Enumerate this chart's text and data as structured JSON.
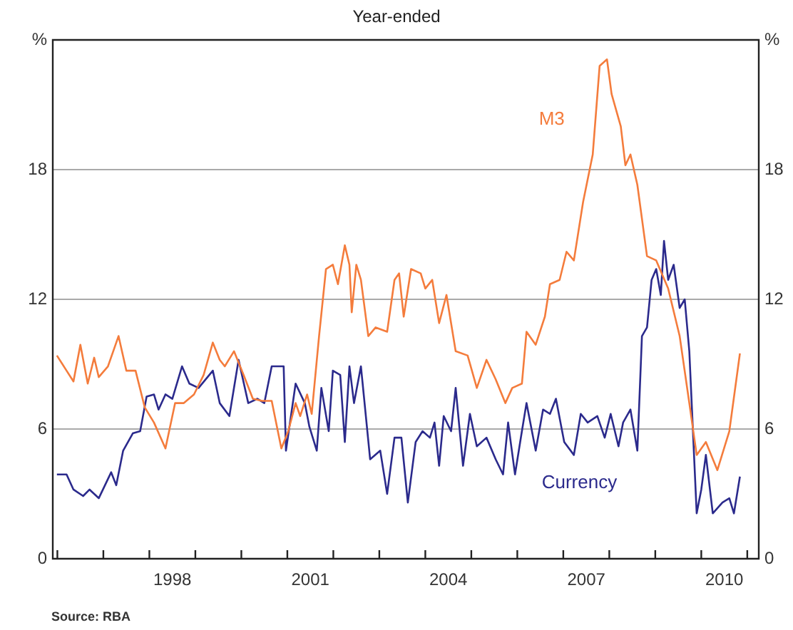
{
  "chart_data": {
    "type": "line",
    "subtitle": "Year-ended",
    "annotations": [
      "Source: RBA"
    ],
    "xlim": [
      1995.9,
      2011.25
    ],
    "xticks": [
      {
        "value": 1996,
        "label": null
      },
      {
        "value": 1997,
        "label": null
      },
      {
        "value": 1998,
        "label": null
      },
      {
        "value": 1998.5,
        "label": "1998"
      },
      {
        "value": 1999,
        "label": null
      },
      {
        "value": 2000,
        "label": null
      },
      {
        "value": 2001,
        "label": null
      },
      {
        "value": 2001.5,
        "label": "2001"
      },
      {
        "value": 2002,
        "label": null
      },
      {
        "value": 2003,
        "label": null
      },
      {
        "value": 2004,
        "label": null
      },
      {
        "value": 2004.5,
        "label": "2004"
      },
      {
        "value": 2005,
        "label": null
      },
      {
        "value": 2006,
        "label": null
      },
      {
        "value": 2007,
        "label": null
      },
      {
        "value": 2007.5,
        "label": "2007"
      },
      {
        "value": 2008,
        "label": null
      },
      {
        "value": 2009,
        "label": null
      },
      {
        "value": 2010,
        "label": null
      },
      {
        "value": 2010.5,
        "label": "2010"
      },
      {
        "value": 2011,
        "label": null
      }
    ],
    "ylim": [
      0,
      24
    ],
    "yticks": [
      0,
      6,
      12,
      18,
      {
        "value": 24,
        "label": "%"
      }
    ],
    "y2lim": [
      0,
      24
    ],
    "y2ticks": [
      0,
      6,
      12,
      18,
      {
        "value": 24,
        "label": "%"
      }
    ],
    "grid": "y",
    "legend": false,
    "marker": "none",
    "line_style": "solid",
    "series": [
      {
        "name": "M3",
        "color": "#f47c3c",
        "x": [
          1995.99,
          1996.2,
          1996.35,
          1996.5,
          1996.66,
          1996.8,
          1996.9,
          1997.1,
          1997.33,
          1997.5,
          1997.7,
          1997.9,
          1998.1,
          1998.35,
          1998.56,
          1998.75,
          1998.97,
          1999.18,
          1999.38,
          1999.53,
          1999.64,
          1999.84,
          2000.05,
          2000.25,
          2000.45,
          2000.66,
          2000.87,
          2001.02,
          2001.18,
          2001.28,
          2001.43,
          2001.53,
          2001.69,
          2001.84,
          2001.99,
          2002.1,
          2002.25,
          2002.35,
          2002.4,
          2002.5,
          2002.6,
          2002.76,
          2002.92,
          2003.17,
          2003.33,
          2003.43,
          2003.53,
          2003.69,
          2003.9,
          2004.0,
          2004.15,
          2004.3,
          2004.46,
          2004.66,
          2004.92,
          2005.12,
          2005.33,
          2005.53,
          2005.74,
          2005.89,
          2006.1,
          2006.2,
          2006.4,
          2006.6,
          2006.71,
          2006.92,
          2007.07,
          2007.23,
          2007.43,
          2007.64,
          2007.79,
          2007.95,
          2008.05,
          2008.25,
          2008.35,
          2008.46,
          2008.61,
          2008.82,
          2009.02,
          2009.28,
          2009.53,
          2009.74,
          2009.9,
          2010.1,
          2010.35,
          2010.61,
          2010.84
        ],
        "values": [
          9.4,
          8.7,
          8.2,
          9.9,
          8.1,
          9.3,
          8.4,
          8.9,
          10.3,
          8.7,
          8.7,
          7.0,
          6.3,
          5.1,
          7.2,
          7.2,
          7.6,
          8.5,
          10.0,
          9.2,
          8.9,
          9.6,
          8.5,
          7.4,
          7.3,
          7.3,
          5.1,
          5.9,
          7.2,
          6.6,
          7.6,
          6.7,
          10.3,
          13.4,
          13.6,
          12.7,
          14.5,
          13.6,
          11.4,
          13.6,
          12.9,
          10.3,
          10.7,
          10.5,
          12.9,
          13.2,
          11.2,
          13.4,
          13.2,
          12.5,
          12.9,
          10.9,
          12.2,
          9.6,
          9.4,
          7.9,
          9.2,
          8.3,
          7.2,
          7.9,
          8.1,
          10.5,
          9.9,
          11.2,
          12.7,
          12.9,
          14.2,
          13.8,
          16.5,
          18.7,
          22.8,
          23.1,
          21.5,
          20.0,
          18.2,
          18.7,
          17.3,
          14.0,
          13.8,
          12.5,
          10.3,
          7.2,
          4.8,
          5.4,
          4.1,
          5.9,
          9.5
        ]
      },
      {
        "name": "Currency",
        "color": "#2b2a8c",
        "x": [
          1995.99,
          1996.2,
          1996.35,
          1996.56,
          1996.7,
          1996.9,
          1997.17,
          1997.28,
          1997.43,
          1997.64,
          1997.8,
          1997.94,
          1998.1,
          1998.2,
          1998.35,
          1998.5,
          1998.71,
          1998.87,
          1999.07,
          1999.38,
          1999.53,
          1999.74,
          1999.94,
          2000.15,
          2000.35,
          2000.5,
          2000.66,
          2000.92,
          2000.97,
          2001.18,
          2001.38,
          2001.48,
          2001.64,
          2001.74,
          2001.9,
          2001.99,
          2002.15,
          2002.25,
          2002.35,
          2002.45,
          2002.6,
          2002.8,
          2003.02,
          2003.17,
          2003.33,
          2003.48,
          2003.62,
          2003.79,
          2003.94,
          2004.1,
          2004.2,
          2004.3,
          2004.4,
          2004.56,
          2004.66,
          2004.82,
          2004.97,
          2005.12,
          2005.33,
          2005.53,
          2005.69,
          2005.8,
          2005.95,
          2006.1,
          2006.2,
          2006.4,
          2006.56,
          2006.71,
          2006.84,
          2007.02,
          2007.23,
          2007.38,
          2007.53,
          2007.74,
          2007.9,
          2008.03,
          2008.2,
          2008.3,
          2008.46,
          2008.61,
          2008.71,
          2008.82,
          2008.92,
          2009.02,
          2009.12,
          2009.19,
          2009.28,
          2009.4,
          2009.53,
          2009.64,
          2009.74,
          2009.9,
          2010.0,
          2010.1,
          2010.25,
          2010.46,
          2010.61,
          2010.71,
          2010.84
        ],
        "values": [
          3.9,
          3.9,
          3.2,
          2.9,
          3.2,
          2.8,
          4.0,
          3.4,
          5.0,
          5.8,
          5.9,
          7.5,
          7.6,
          6.9,
          7.6,
          7.4,
          8.9,
          8.1,
          7.9,
          8.7,
          7.2,
          6.6,
          9.2,
          7.2,
          7.4,
          7.2,
          8.9,
          8.9,
          5.0,
          8.1,
          7.2,
          6.1,
          5.0,
          7.9,
          5.9,
          8.7,
          8.5,
          5.4,
          8.9,
          7.2,
          8.9,
          4.6,
          5.0,
          3.0,
          5.6,
          5.6,
          2.6,
          5.4,
          5.9,
          5.6,
          6.3,
          4.3,
          6.6,
          5.9,
          7.9,
          4.3,
          6.7,
          5.2,
          5.6,
          4.6,
          3.9,
          6.3,
          3.9,
          5.9,
          7.2,
          5.0,
          6.9,
          6.7,
          7.4,
          5.4,
          4.8,
          6.7,
          6.3,
          6.6,
          5.6,
          6.7,
          5.2,
          6.3,
          6.9,
          5.0,
          10.3,
          10.7,
          12.9,
          13.4,
          12.2,
          14.7,
          12.9,
          13.6,
          11.6,
          12.0,
          9.6,
          2.1,
          3.2,
          4.8,
          2.1,
          2.6,
          2.8,
          2.1,
          3.8
        ]
      }
    ]
  }
}
